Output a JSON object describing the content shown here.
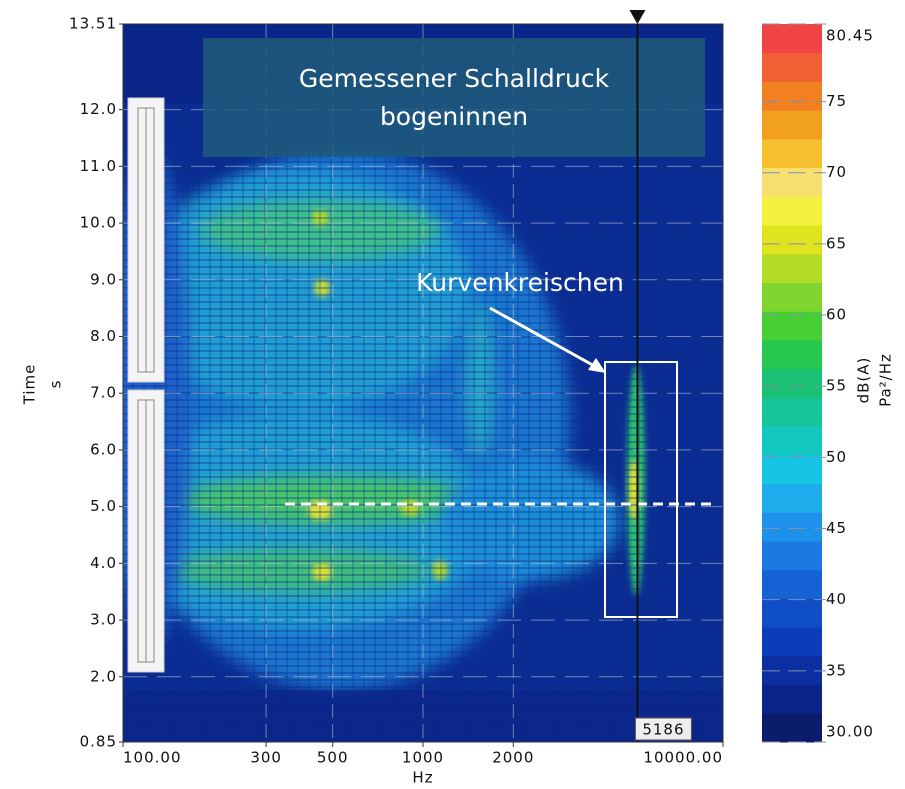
{
  "chart_data": {
    "type": "spectrogram",
    "xlabel": "Hz",
    "ylabel": "Time",
    "ylabel_unit": "s",
    "xscale": "log",
    "xlim": [
      100,
      10000
    ],
    "xticks": [
      {
        "value": 100,
        "label": "100.00"
      },
      300,
      500,
      1000,
      2000,
      {
        "value": 10000,
        "label": "10000.00"
      }
    ],
    "ylim": [
      0.85,
      13.51
    ],
    "yticks": [
      0.85,
      {
        "value": 2,
        "label": "2.0"
      },
      {
        "value": 3,
        "label": "3.0"
      },
      {
        "value": 4,
        "label": "4.0"
      },
      {
        "value": 5,
        "label": "5.0"
      },
      {
        "value": 6,
        "label": "6.0"
      },
      {
        "value": 7,
        "label": "7.0"
      },
      {
        "value": 8,
        "label": "8.0"
      },
      {
        "value": 9,
        "label": "9.0"
      },
      {
        "value": 10,
        "label": "10.0"
      },
      {
        "value": 11,
        "label": "11.0"
      },
      {
        "value": 12,
        "label": "12.0"
      },
      13.51
    ],
    "grid": true,
    "colorbar": {
      "label": "dB(A)",
      "unit": "Pa²/Hz",
      "lim": [
        30,
        80.45
      ],
      "ticks": [
        {
          "value": 30,
          "label": "30.00"
        },
        35,
        40,
        45,
        50,
        55,
        60,
        65,
        70,
        75,
        80.45
      ],
      "colors": [
        "#0b1c6c",
        "#0a2488",
        "#0b2ea0",
        "#0d3cb8",
        "#104ec8",
        "#1462d6",
        "#1a78e2",
        "#1e92ea",
        "#1eacec",
        "#16c4e4",
        "#12c8c0",
        "#16c49c",
        "#1cc274",
        "#28c850",
        "#46d034",
        "#80d42e",
        "#b4dc26",
        "#e0e41e",
        "#f4f040",
        "#f8e070",
        "#f6c030",
        "#f2a020",
        "#f08020",
        "#f06034",
        "#f04444"
      ]
    },
    "cursor": 5186,
    "annotations": [
      "Gemessener Schalldruck",
      "bogeninnen",
      "Kurvenkreischen"
    ]
  }
}
